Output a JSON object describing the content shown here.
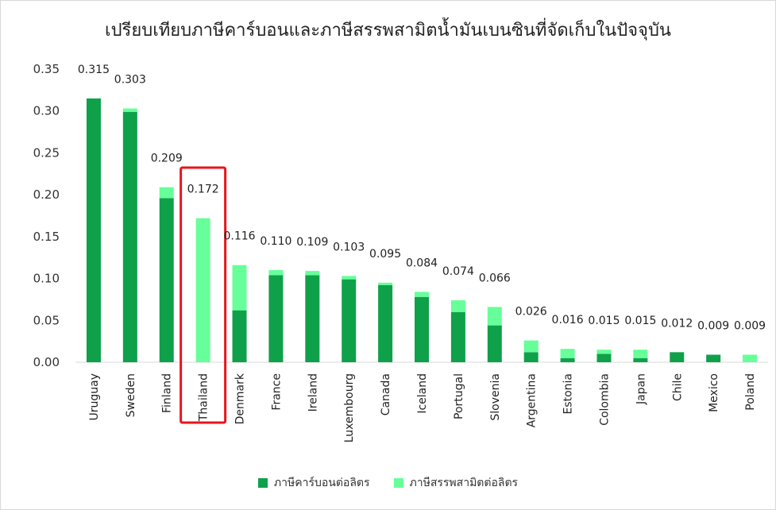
{
  "chart_data": {
    "type": "bar",
    "stacked": true,
    "title": "เปรียบเทียบภาษีคาร์บอนและภาษีสรรพสามิตน้ำมันเบนซินที่จัดเก็บในปัจจุบัน",
    "xlabel": "",
    "ylabel": "",
    "ylim": [
      0,
      0.35
    ],
    "yticks": [
      "0.00",
      "0.05",
      "0.10",
      "0.15",
      "0.20",
      "0.25",
      "0.30",
      "0.35"
    ],
    "grid": false,
    "legend_position": "bottom",
    "categories": [
      "Uruguay",
      "Sweden",
      "Finland",
      "Thailand",
      "Denmark",
      "France",
      "Ireland",
      "Luxembourg",
      "Canada",
      "Iceland",
      "Portugal",
      "Slovenia",
      "Argentina",
      "Estonia",
      "Colombia",
      "Japan",
      "Chile",
      "Mexico",
      "Poland"
    ],
    "series": [
      {
        "name": "ภาษีคาร์บอนต่อลิตร",
        "color": "#0ea14a",
        "values": [
          0.315,
          0.299,
          0.196,
          0.0,
          0.062,
          0.104,
          0.104,
          0.099,
          0.092,
          0.078,
          0.06,
          0.044,
          0.012,
          0.005,
          0.01,
          0.005,
          0.012,
          0.009,
          0.0
        ]
      },
      {
        "name": "ภาษีสรรพสามิตต่อลิตร",
        "color": "#66ff99",
        "values": [
          0.0,
          0.004,
          0.013,
          0.172,
          0.054,
          0.006,
          0.005,
          0.004,
          0.003,
          0.006,
          0.014,
          0.022,
          0.014,
          0.011,
          0.005,
          0.01,
          0.0,
          0.0,
          0.009
        ]
      }
    ],
    "totals": [
      "0.315",
      "0.303",
      "0.209",
      "0.172",
      "0.116",
      "0.110",
      "0.109",
      "0.103",
      "0.095",
      "0.084",
      "0.074",
      "0.066",
      "0.026",
      "0.016",
      "0.015",
      "0.015",
      "0.012",
      "0.009",
      "0.009"
    ],
    "highlight": {
      "category": "Thailand",
      "color": "#e8141b"
    }
  }
}
